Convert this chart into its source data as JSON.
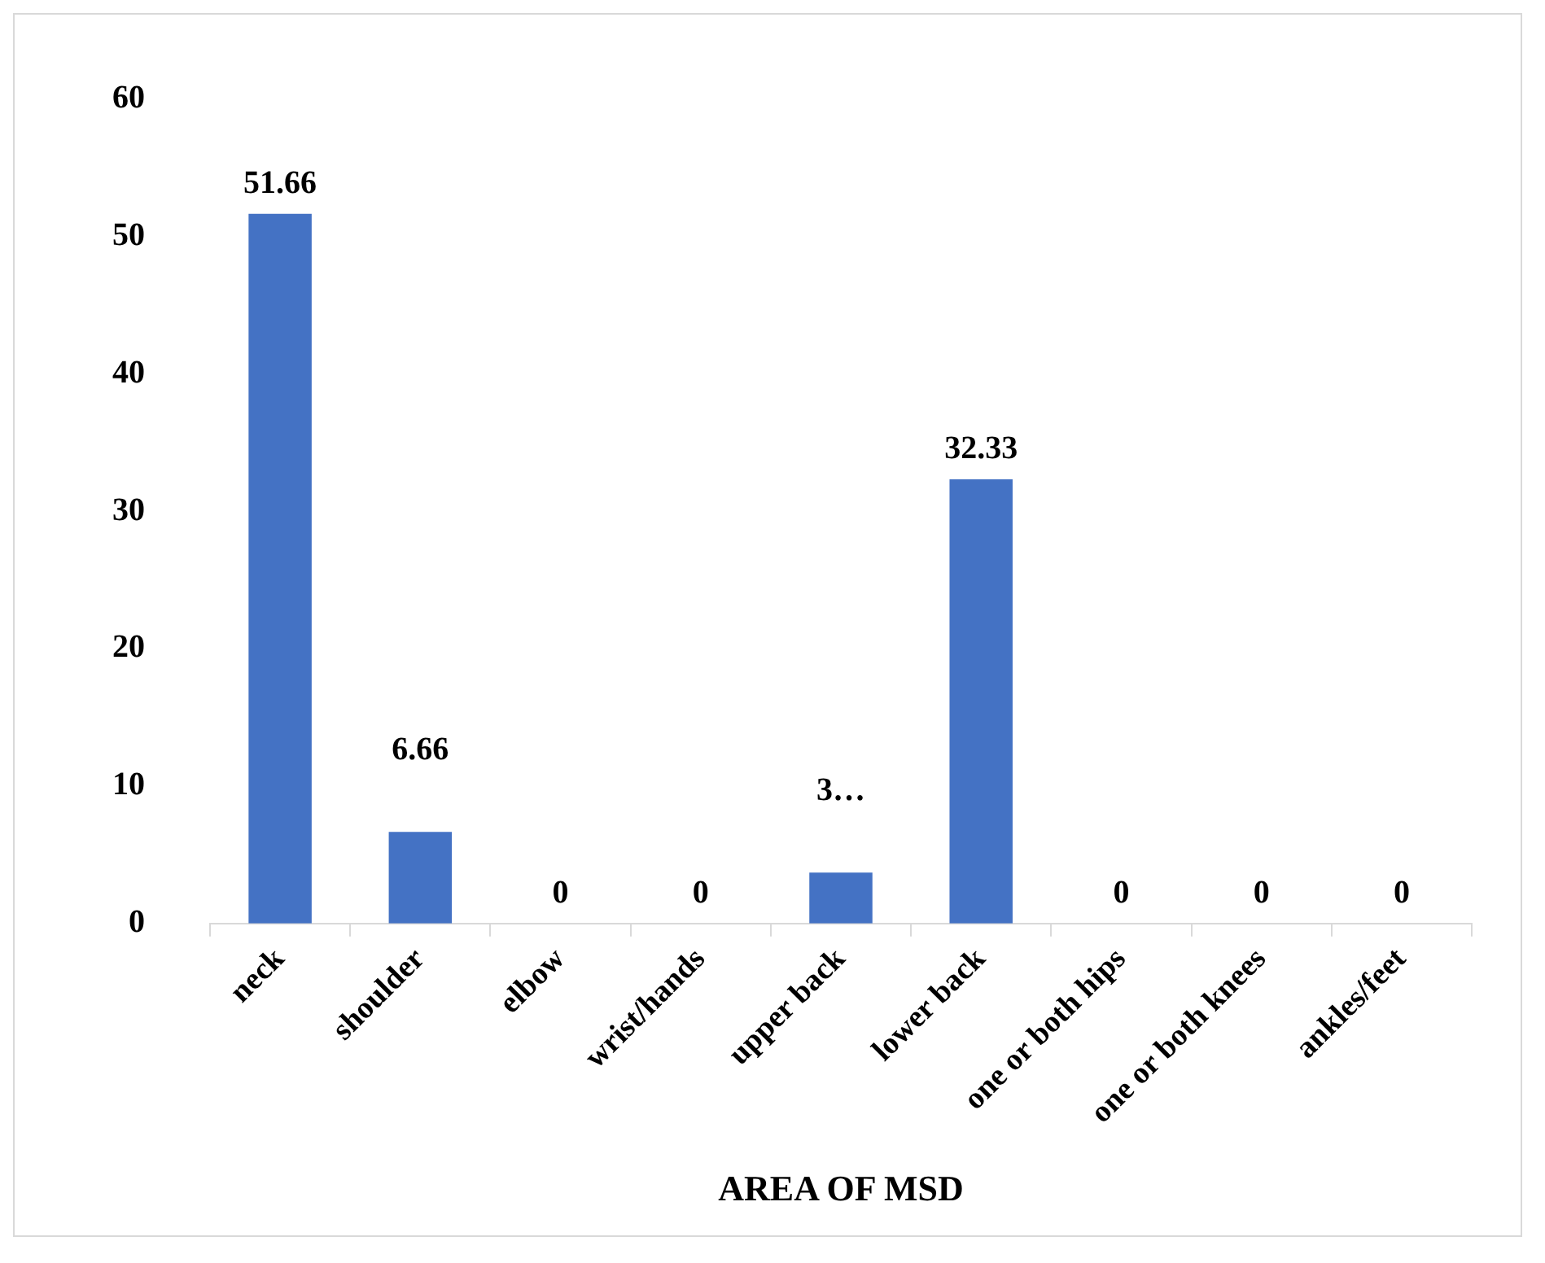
{
  "chart_data": {
    "type": "bar",
    "xlabel": "AREA OF MSD",
    "categories": [
      "neck",
      "shoulder",
      "elbow",
      "wrist/hands",
      "upper back",
      "lower back",
      "one or both hips",
      "one or both knees",
      "ankles/feet"
    ],
    "values": [
      51.66,
      6.66,
      0,
      0,
      3.7,
      32.33,
      0,
      0,
      0
    ],
    "value_labels": [
      "51.66",
      "6.66",
      "0",
      "0",
      "3…",
      "32.33",
      "0",
      "0",
      "0"
    ],
    "color": "#4472c4",
    "ylim": [
      0,
      60
    ],
    "yticks": [
      0,
      10,
      20,
      30,
      40,
      50,
      60
    ],
    "grid": false,
    "legend": false
  }
}
